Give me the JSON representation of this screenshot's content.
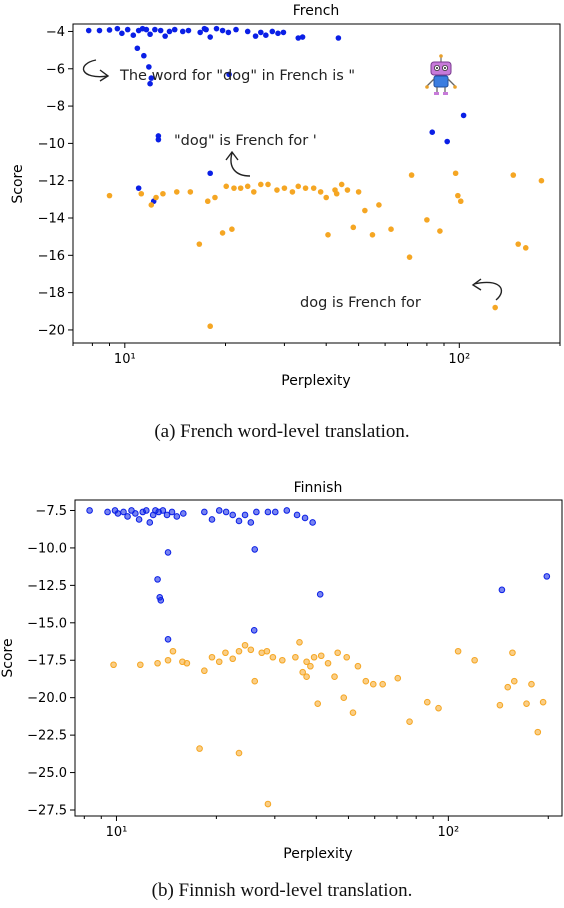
{
  "chart_data": [
    {
      "type": "scatter",
      "title": "French",
      "xlabel": "Perplexity",
      "ylabel": "Score",
      "xscale": "log",
      "xlim": [
        7,
        200
      ],
      "ylim": [
        -20.7,
        -3.6
      ],
      "xticks": [
        {
          "value": 10,
          "label": "10¹"
        },
        {
          "value": 100,
          "label": "10²"
        }
      ],
      "yticks": [
        -4,
        -6,
        -8,
        -10,
        -12,
        -14,
        -16,
        -18,
        -20
      ],
      "ytick_labels": [
        "−4",
        "−6",
        "−8",
        "−10",
        "−12",
        "−14",
        "−16",
        "−18",
        "−20"
      ],
      "grid": false,
      "series": [
        {
          "color": "#0a1fe6",
          "points": [
            [
              7.8,
              -3.95
            ],
            [
              8.4,
              -3.95
            ],
            [
              9.0,
              -3.92
            ],
            [
              9.5,
              -3.85
            ],
            [
              9.8,
              -4.1
            ],
            [
              10.2,
              -3.9
            ],
            [
              10.6,
              -4.2
            ],
            [
              11.0,
              -3.95
            ],
            [
              11.3,
              -3.85
            ],
            [
              11.6,
              -3.9
            ],
            [
              11.9,
              -4.15
            ],
            [
              12.3,
              -3.9
            ],
            [
              12.8,
              -3.95
            ],
            [
              13.2,
              -4.25
            ],
            [
              13.6,
              -4.0
            ],
            [
              14.1,
              -3.9
            ],
            [
              14.9,
              -4.0
            ],
            [
              15.5,
              -3.95
            ],
            [
              16.8,
              -4.05
            ],
            [
              17.5,
              -3.9
            ],
            [
              18.0,
              -4.3
            ],
            [
              17.3,
              -3.85
            ],
            [
              18.8,
              -3.85
            ],
            [
              19.6,
              -3.95
            ],
            [
              20.4,
              -4.05
            ],
            [
              21.5,
              -3.9
            ],
            [
              23.3,
              -4.0
            ],
            [
              24.6,
              -4.25
            ],
            [
              25.5,
              -4.05
            ],
            [
              26.4,
              -4.2
            ],
            [
              27.6,
              -4.0
            ],
            [
              28.7,
              -4.1
            ],
            [
              29.8,
              -4.05
            ],
            [
              33.0,
              -4.35
            ],
            [
              34.0,
              -4.3
            ],
            [
              43.5,
              -4.35
            ],
            [
              10.9,
              -4.9
            ],
            [
              11.4,
              -5.3
            ],
            [
              11.8,
              -5.9
            ],
            [
              12.0,
              -6.5
            ],
            [
              11.9,
              -6.8
            ],
            [
              20.5,
              -6.3
            ],
            [
              11.0,
              -12.4
            ],
            [
              12.2,
              -13.1
            ],
            [
              12.6,
              -9.6
            ],
            [
              12.6,
              -9.8
            ],
            [
              18.0,
              -11.6
            ],
            [
              83.0,
              -9.4
            ],
            [
              92.0,
              -9.9
            ],
            [
              103.0,
              -8.5
            ]
          ]
        },
        {
          "color": "#f5a623",
          "points": [
            [
              9.0,
              -12.8
            ],
            [
              11.2,
              -12.7
            ],
            [
              12.0,
              -13.3
            ],
            [
              12.4,
              -12.9
            ],
            [
              13.0,
              -12.7
            ],
            [
              14.3,
              -12.6
            ],
            [
              15.7,
              -12.6
            ],
            [
              16.7,
              -15.4
            ],
            [
              17.7,
              -13.1
            ],
            [
              18.0,
              -19.8
            ],
            [
              18.6,
              -12.9
            ],
            [
              19.6,
              -14.8
            ],
            [
              20.1,
              -12.3
            ],
            [
              21.2,
              -12.4
            ],
            [
              20.9,
              -14.6
            ],
            [
              22.2,
              -12.4
            ],
            [
              23.3,
              -12.3
            ],
            [
              24.3,
              -12.6
            ],
            [
              25.5,
              -12.2
            ],
            [
              26.8,
              -12.2
            ],
            [
              28.5,
              -12.5
            ],
            [
              30.0,
              -12.4
            ],
            [
              31.7,
              -12.6
            ],
            [
              33.0,
              -12.3
            ],
            [
              34.7,
              -12.4
            ],
            [
              36.7,
              -12.4
            ],
            [
              38.5,
              -12.6
            ],
            [
              40.0,
              -12.9
            ],
            [
              40.5,
              -14.9
            ],
            [
              42.5,
              -12.5
            ],
            [
              43.0,
              -12.7
            ],
            [
              44.5,
              -12.2
            ],
            [
              46.3,
              -12.5
            ],
            [
              48.2,
              -14.5
            ],
            [
              50.0,
              -12.6
            ],
            [
              52.2,
              -13.6
            ],
            [
              55.0,
              -14.9
            ],
            [
              57.5,
              -13.3
            ],
            [
              62.5,
              -14.6
            ],
            [
              71.0,
              -16.1
            ],
            [
              72.0,
              -11.7
            ],
            [
              80.0,
              -14.1
            ],
            [
              87.5,
              -14.7
            ],
            [
              97.5,
              -11.6
            ],
            [
              99.0,
              -12.8
            ],
            [
              101.0,
              -13.1
            ],
            [
              128.0,
              -18.8
            ],
            [
              145.0,
              -11.7
            ],
            [
              150.0,
              -15.4
            ],
            [
              158.0,
              -15.6
            ],
            [
              176.0,
              -12.0
            ]
          ]
        }
      ],
      "annotations": [
        {
          "text": "The word for \"dog\" in French is \"",
          "at": [
            20,
            -5.8
          ]
        },
        {
          "text": "\"dog\" is French for '",
          "at": [
            22.5,
            -9.5
          ]
        },
        {
          "text": "dog is French for",
          "at": [
            42,
            -18.3
          ]
        }
      ]
    },
    {
      "type": "scatter",
      "title": "Finnish",
      "xlabel": "Perplexity",
      "ylabel": "Score",
      "xscale": "log",
      "xlim": [
        7.5,
        220
      ],
      "ylim": [
        -27.9,
        -6.8
      ],
      "xticks": [
        {
          "value": 10,
          "label": "10¹"
        },
        {
          "value": 100,
          "label": "10²"
        }
      ],
      "yticks": [
        -7.5,
        -10.0,
        -12.5,
        -15.0,
        -17.5,
        -20.0,
        -22.5,
        -25.0,
        -27.5
      ],
      "ytick_labels": [
        "−7.5",
        "−10.0",
        "−12.5",
        "−15.0",
        "−17.5",
        "−20.0",
        "−22.5",
        "−25.0",
        "−27.5"
      ],
      "grid": false,
      "series": [
        {
          "color": "#0a1fe6",
          "points": [
            [
              8.3,
              -7.5
            ],
            [
              9.4,
              -7.6
            ],
            [
              9.9,
              -7.5
            ],
            [
              10.1,
              -7.7
            ],
            [
              10.5,
              -7.6
            ],
            [
              10.8,
              -7.9
            ],
            [
              11.1,
              -7.5
            ],
            [
              11.4,
              -7.7
            ],
            [
              11.7,
              -8.1
            ],
            [
              12.0,
              -7.6
            ],
            [
              12.3,
              -7.5
            ],
            [
              12.6,
              -8.3
            ],
            [
              12.9,
              -7.8
            ],
            [
              13.1,
              -7.5
            ],
            [
              13.4,
              -7.6
            ],
            [
              13.8,
              -7.5
            ],
            [
              14.2,
              -7.8
            ],
            [
              14.7,
              -7.6
            ],
            [
              15.2,
              -7.9
            ],
            [
              15.9,
              -7.7
            ],
            [
              18.4,
              -7.6
            ],
            [
              19.4,
              -8.1
            ],
            [
              20.4,
              -7.5
            ],
            [
              21.4,
              -7.6
            ],
            [
              22.4,
              -7.8
            ],
            [
              23.4,
              -8.2
            ],
            [
              24.4,
              -7.8
            ],
            [
              25.4,
              -8.3
            ],
            [
              26.4,
              -7.6
            ],
            [
              28.6,
              -7.6
            ],
            [
              30.1,
              -7.6
            ],
            [
              32.6,
              -7.5
            ],
            [
              35.0,
              -7.8
            ],
            [
              37.0,
              -8.0
            ],
            [
              39.0,
              -8.3
            ],
            [
              14.3,
              -10.3
            ],
            [
              26.1,
              -10.1
            ],
            [
              13.3,
              -12.1
            ],
            [
              13.5,
              -13.3
            ],
            [
              13.6,
              -13.5
            ],
            [
              41.1,
              -13.1
            ],
            [
              14.3,
              -16.1
            ],
            [
              26.0,
              -15.5
            ],
            [
              145.0,
              -12.8
            ],
            [
              198.0,
              -11.9
            ]
          ]
        },
        {
          "color": "#f5a623",
          "points": [
            [
              9.8,
              -17.8
            ],
            [
              11.8,
              -17.8
            ],
            [
              13.3,
              -17.7
            ],
            [
              14.8,
              -16.9
            ],
            [
              14.3,
              -17.5
            ],
            [
              15.8,
              -17.6
            ],
            [
              16.3,
              -17.7
            ],
            [
              18.4,
              -18.2
            ],
            [
              19.4,
              -17.3
            ],
            [
              20.4,
              -17.6
            ],
            [
              21.3,
              -17.0
            ],
            [
              22.4,
              -17.4
            ],
            [
              23.4,
              -16.9
            ],
            [
              24.4,
              -16.5
            ],
            [
              25.4,
              -16.8
            ],
            [
              26.1,
              -18.9
            ],
            [
              27.4,
              -17.0
            ],
            [
              28.4,
              -16.9
            ],
            [
              29.6,
              -17.3
            ],
            [
              31.6,
              -17.5
            ],
            [
              34.6,
              -17.3
            ],
            [
              35.6,
              -16.3
            ],
            [
              36.4,
              -18.3
            ],
            [
              37.4,
              -17.6
            ],
            [
              37.4,
              -18.6
            ],
            [
              38.4,
              -17.9
            ],
            [
              39.4,
              -17.3
            ],
            [
              40.4,
              -20.4
            ],
            [
              41.4,
              -17.2
            ],
            [
              43.4,
              -17.7
            ],
            [
              45.4,
              -18.6
            ],
            [
              46.4,
              -17.0
            ],
            [
              48.4,
              -20.0
            ],
            [
              49.4,
              -17.3
            ],
            [
              51.6,
              -21.0
            ],
            [
              53.4,
              -17.9
            ],
            [
              56.4,
              -18.9
            ],
            [
              59.4,
              -19.1
            ],
            [
              63.4,
              -19.1
            ],
            [
              70.4,
              -18.7
            ],
            [
              76.4,
              -21.6
            ],
            [
              86.4,
              -20.3
            ],
            [
              93.4,
              -20.7
            ],
            [
              107.0,
              -16.9
            ],
            [
              120.0,
              -17.5
            ],
            [
              143.0,
              -20.5
            ],
            [
              151.0,
              -19.3
            ],
            [
              156.0,
              -17.0
            ],
            [
              158.0,
              -18.9
            ],
            [
              172.0,
              -20.4
            ],
            [
              178.0,
              -19.1
            ],
            [
              186.0,
              -22.3
            ],
            [
              193.0,
              -20.3
            ],
            [
              17.8,
              -23.4
            ],
            [
              23.4,
              -23.7
            ],
            [
              28.6,
              -27.1
            ]
          ]
        }
      ],
      "annotations": []
    }
  ],
  "captions": {
    "a": "(a) French word-level translation.",
    "b": "(b) Finnish word-level translation."
  }
}
